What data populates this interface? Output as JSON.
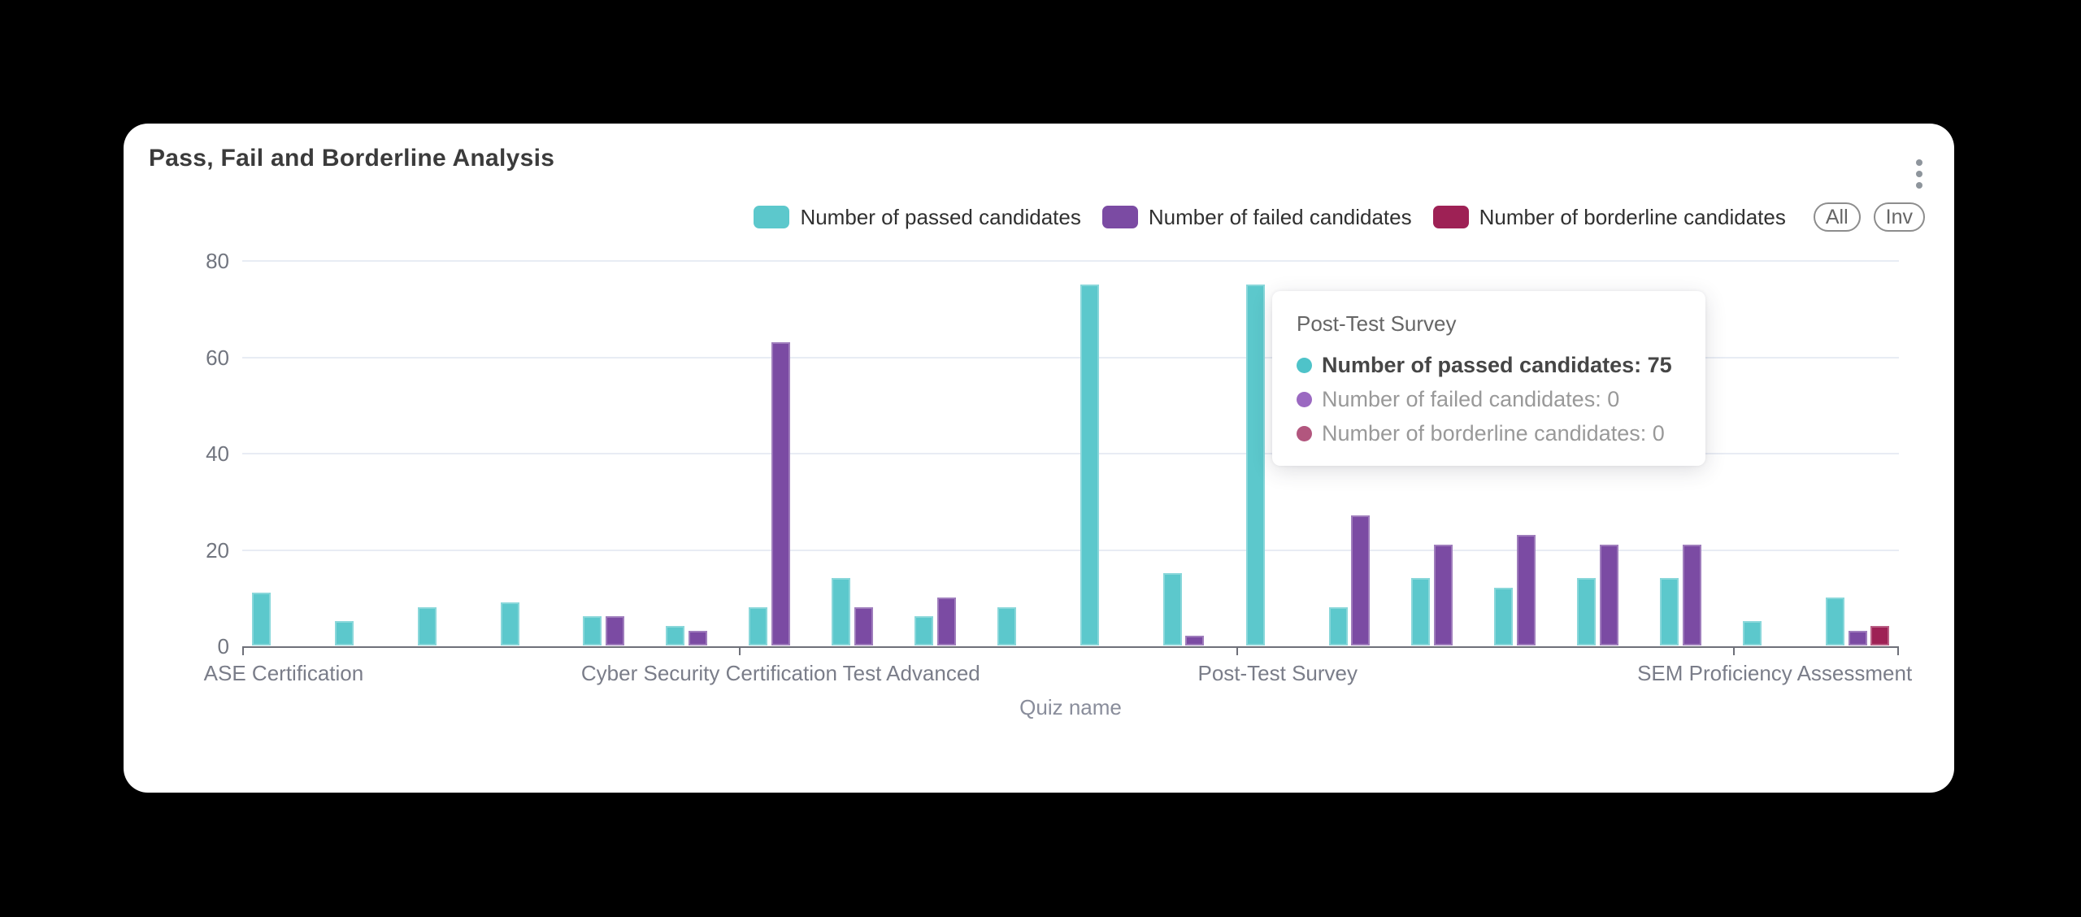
{
  "page": {
    "background": "#000000"
  },
  "card": {
    "title": "Pass, Fail and Borderline Analysis",
    "menu_icon": "kebab-vertical-dots"
  },
  "legend": {
    "items": [
      {
        "label": "Number of passed candidates",
        "color": "#5CC8CC"
      },
      {
        "label": "Number of failed candidates",
        "color": "#7B4BA3"
      },
      {
        "label": "Number of borderline candidates",
        "color": "#9E2155"
      }
    ],
    "buttons": [
      {
        "label": "All"
      },
      {
        "label": "Inv"
      }
    ]
  },
  "tooltip": {
    "title": "Post-Test Survey",
    "rows": [
      {
        "label": "Number of passed candidates",
        "value": 75,
        "color": "#4EC3C9",
        "bold": true
      },
      {
        "label": "Number of failed candidates",
        "value": 0,
        "color": "#9B69C1",
        "bold": false
      },
      {
        "label": "Number of borderline candidates",
        "value": 0,
        "color": "#B2567E",
        "bold": false
      }
    ]
  },
  "chart_data": {
    "type": "bar",
    "title": "Pass, Fail and Borderline Analysis",
    "xlabel": "Quiz name",
    "ylabel": "",
    "ylim": [
      0,
      80
    ],
    "yticks": [
      0,
      20,
      40,
      60,
      80
    ],
    "grid": true,
    "legend_position": "top-right",
    "xtick_boundaries": [
      0,
      6,
      12,
      18,
      20
    ],
    "categories": [
      "ASE Certification",
      "",
      "",
      "",
      "",
      "",
      "Cyber Security Certification Test Advanced",
      "",
      "",
      "",
      "",
      "",
      "Post-Test Survey",
      "",
      "",
      "",
      "",
      "",
      "SEM Proficiency Assessment",
      ""
    ],
    "series": [
      {
        "name": "Number of passed candidates",
        "key": "passed",
        "color": "#5CC8CC",
        "values": [
          11,
          5,
          8,
          9,
          6,
          4,
          8,
          14,
          6,
          8,
          75,
          15,
          75,
          8,
          14,
          12,
          14,
          14,
          5,
          10
        ]
      },
      {
        "name": "Number of failed candidates",
        "key": "failed",
        "color": "#7B4BA3",
        "values": [
          0,
          0,
          0,
          0,
          6,
          3,
          63,
          8,
          10,
          0,
          0,
          2,
          0,
          27,
          21,
          23,
          21,
          21,
          0,
          3
        ]
      },
      {
        "name": "Number of borderline candidates",
        "key": "borderline",
        "color": "#9E2155",
        "values": [
          0,
          0,
          0,
          0,
          0,
          0,
          0,
          0,
          0,
          0,
          0,
          0,
          0,
          0,
          0,
          0,
          0,
          0,
          0,
          4
        ]
      }
    ]
  }
}
